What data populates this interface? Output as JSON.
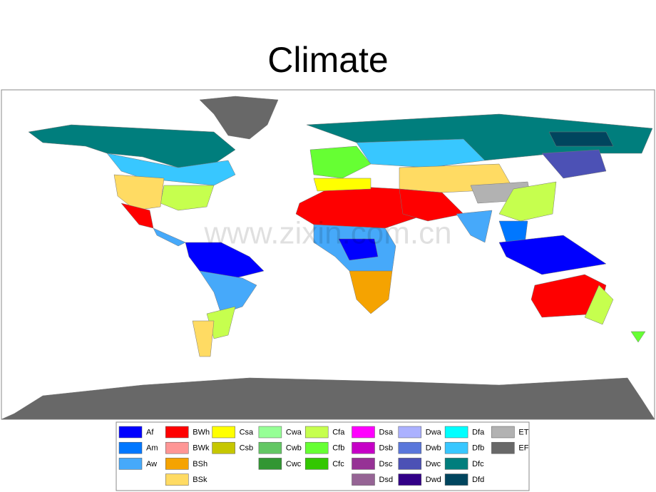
{
  "title": "Climate",
  "watermark": "www.zixin.com.cn",
  "legend": {
    "columns": [
      [
        {
          "code": "Af",
          "color": "#0000fe"
        },
        {
          "code": "Am",
          "color": "#0077ff"
        },
        {
          "code": "Aw",
          "color": "#46a9fa"
        }
      ],
      [
        {
          "code": "BWh",
          "color": "#fe0000"
        },
        {
          "code": "BWk",
          "color": "#fe9695"
        },
        {
          "code": "BSh",
          "color": "#f5a301"
        },
        {
          "code": "BSk",
          "color": "#ffdb63"
        }
      ],
      [
        {
          "code": "Csa",
          "color": "#ffff00"
        },
        {
          "code": "Csb",
          "color": "#c6c700"
        }
      ],
      [
        {
          "code": "Cwa",
          "color": "#96ff96"
        },
        {
          "code": "Cwb",
          "color": "#63c764"
        },
        {
          "code": "Cwc",
          "color": "#329633"
        }
      ],
      [
        {
          "code": "Cfa",
          "color": "#c6ff4e"
        },
        {
          "code": "Cfb",
          "color": "#66ff33"
        },
        {
          "code": "Cfc",
          "color": "#33c701"
        }
      ],
      [
        {
          "code": "Dsa",
          "color": "#ff00fe"
        },
        {
          "code": "Dsb",
          "color": "#c600c7"
        },
        {
          "code": "Dsc",
          "color": "#963295"
        },
        {
          "code": "Dsd",
          "color": "#966495"
        }
      ],
      [
        {
          "code": "Dwa",
          "color": "#abb1ff"
        },
        {
          "code": "Dwb",
          "color": "#5a77db"
        },
        {
          "code": "Dwc",
          "color": "#4c51b5"
        },
        {
          "code": "Dwd",
          "color": "#320087"
        }
      ],
      [
        {
          "code": "Dfa",
          "color": "#00ffff"
        },
        {
          "code": "Dfb",
          "color": "#38c7ff"
        },
        {
          "code": "Dfc",
          "color": "#007e7d"
        },
        {
          "code": "Dfd",
          "color": "#00455e"
        }
      ],
      [
        {
          "code": "ET",
          "color": "#b2b2b2"
        },
        {
          "code": "EF",
          "color": "#686868"
        }
      ]
    ]
  }
}
